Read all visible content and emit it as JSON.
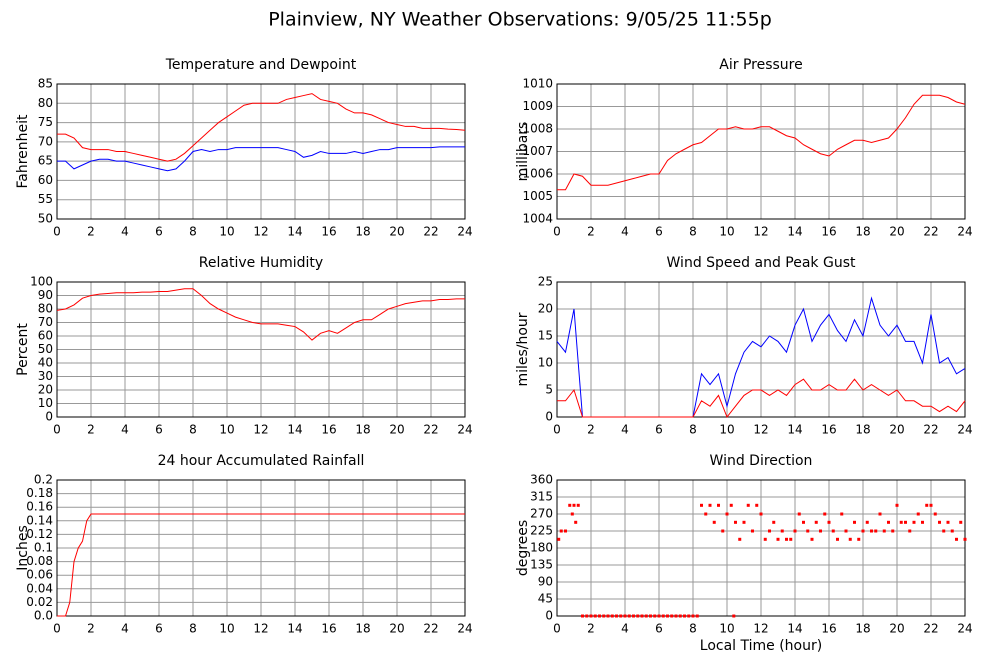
{
  "title": "Plainview, NY Weather Observations: 9/05/25 11:55p",
  "chart_data": [
    {
      "type": "line",
      "title": "Temperature and Dewpoint",
      "ylabel": "Fahrenheit",
      "x": [
        0,
        0.5,
        1,
        1.5,
        2,
        2.5,
        3,
        3.5,
        4,
        4.5,
        5,
        5.5,
        6,
        6.5,
        7,
        7.5,
        8,
        8.5,
        9,
        9.5,
        10,
        10.5,
        11,
        11.5,
        12,
        12.5,
        13,
        13.5,
        14,
        14.5,
        15,
        15.5,
        16,
        16.5,
        17,
        17.5,
        18,
        18.5,
        19,
        19.5,
        20,
        20.5,
        21,
        21.5,
        22,
        22.5,
        23,
        23.5,
        24
      ],
      "series": [
        {
          "color": "#ff0000",
          "values": [
            72,
            72,
            71,
            68.5,
            68,
            68,
            68,
            67.5,
            67.5,
            67,
            66.5,
            66,
            65.5,
            65,
            65.5,
            67,
            69,
            71,
            73,
            75,
            76.5,
            78,
            79.5,
            80,
            80,
            80,
            80,
            81,
            81.5,
            82,
            82.5,
            81,
            80.5,
            80,
            78.5,
            77.5,
            77.5,
            77,
            76,
            75,
            74.5,
            74,
            74,
            73.5,
            73.5,
            73.5,
            73.3,
            73.2,
            73
          ]
        },
        {
          "color": "#0000ff",
          "values": [
            65,
            65,
            63,
            64,
            65,
            65.5,
            65.5,
            65,
            65,
            64.5,
            64,
            63.5,
            63,
            62.5,
            63,
            65,
            67.5,
            68,
            67.5,
            68,
            68,
            68.5,
            68.5,
            68.5,
            68.5,
            68.5,
            68.5,
            68,
            67.5,
            66,
            66.5,
            67.5,
            67,
            67,
            67,
            67.5,
            67,
            67.5,
            68,
            68,
            68.5,
            68.5,
            68.5,
            68.5,
            68.5,
            68.7,
            68.7,
            68.7,
            68.7
          ]
        }
      ],
      "xlim": [
        0,
        24
      ],
      "xticks": [
        0,
        2,
        4,
        6,
        8,
        10,
        12,
        14,
        16,
        18,
        20,
        22,
        24
      ],
      "ylim": [
        50,
        85
      ],
      "yticks": [
        50,
        55,
        60,
        65,
        70,
        75,
        80,
        85
      ],
      "grid": true
    },
    {
      "type": "line",
      "title": "Air Pressure",
      "ylabel": "millibars",
      "x": [
        0,
        0.5,
        1,
        1.5,
        2,
        2.5,
        3,
        3.5,
        4,
        4.5,
        5,
        5.5,
        6,
        6.5,
        7,
        7.5,
        8,
        8.5,
        9,
        9.5,
        10,
        10.5,
        11,
        11.5,
        12,
        12.5,
        13,
        13.5,
        14,
        14.5,
        15,
        15.5,
        16,
        16.5,
        17,
        17.5,
        18,
        18.5,
        19,
        19.5,
        20,
        20.5,
        21,
        21.5,
        22,
        22.5,
        23,
        23.5,
        24
      ],
      "series": [
        {
          "color": "#ff0000",
          "values": [
            1005.3,
            1005.3,
            1006,
            1005.9,
            1005.5,
            1005.5,
            1005.5,
            1005.6,
            1005.7,
            1005.8,
            1005.9,
            1006,
            1006,
            1006.6,
            1006.9,
            1007.1,
            1007.3,
            1007.4,
            1007.7,
            1008,
            1008,
            1008.1,
            1008,
            1008,
            1008.1,
            1008.1,
            1007.9,
            1007.7,
            1007.6,
            1007.3,
            1007.1,
            1006.9,
            1006.8,
            1007.1,
            1007.3,
            1007.5,
            1007.5,
            1007.4,
            1007.5,
            1007.6,
            1008,
            1008.5,
            1009.1,
            1009.5,
            1009.5,
            1009.5,
            1009.4,
            1009.2,
            1009.1
          ]
        }
      ],
      "xlim": [
        0,
        24
      ],
      "xticks": [
        0,
        2,
        4,
        6,
        8,
        10,
        12,
        14,
        16,
        18,
        20,
        22,
        24
      ],
      "ylim": [
        1004,
        1010
      ],
      "yticks": [
        1004,
        1005,
        1006,
        1007,
        1008,
        1009,
        1010
      ],
      "grid": true
    },
    {
      "type": "line",
      "title": "Relative Humidity",
      "ylabel": "Percent",
      "x": [
        0,
        0.5,
        1,
        1.5,
        2,
        2.5,
        3,
        3.5,
        4,
        4.5,
        5,
        5.5,
        6,
        6.5,
        7,
        7.5,
        8,
        8.5,
        9,
        9.5,
        10,
        10.5,
        11,
        11.5,
        12,
        12.5,
        13,
        13.5,
        14,
        14.5,
        15,
        15.5,
        16,
        16.5,
        17,
        17.5,
        18,
        18.5,
        19,
        19.5,
        20,
        20.5,
        21,
        21.5,
        22,
        22.5,
        23,
        23.5,
        24
      ],
      "series": [
        {
          "color": "#ff0000",
          "values": [
            79,
            80,
            83,
            88,
            90,
            91,
            91.5,
            92,
            92,
            92,
            92.5,
            92.5,
            93,
            93,
            94,
            95,
            95,
            90,
            84,
            80,
            77,
            74,
            72,
            70,
            69,
            69,
            69,
            68,
            67,
            63,
            57,
            62,
            64,
            62,
            66,
            70,
            72,
            72,
            76,
            80,
            82,
            84,
            85,
            86,
            86,
            87,
            87,
            87.5,
            87.5
          ]
        }
      ],
      "xlim": [
        0,
        24
      ],
      "xticks": [
        0,
        2,
        4,
        6,
        8,
        10,
        12,
        14,
        16,
        18,
        20,
        22,
        24
      ],
      "ylim": [
        0,
        100
      ],
      "yticks": [
        0,
        10,
        20,
        30,
        40,
        50,
        60,
        70,
        80,
        90,
        100
      ],
      "grid": true
    },
    {
      "type": "line",
      "title": "Wind Speed and Peak Gust",
      "ylabel": "miles/hour",
      "x": [
        0,
        0.5,
        1,
        1.5,
        2,
        2.5,
        3,
        3.5,
        4,
        4.5,
        5,
        5.5,
        6,
        6.5,
        7,
        7.5,
        8,
        8.5,
        9,
        9.5,
        10,
        10.5,
        11,
        11.5,
        12,
        12.5,
        13,
        13.5,
        14,
        14.5,
        15,
        15.5,
        16,
        16.5,
        17,
        17.5,
        18,
        18.5,
        19,
        19.5,
        20,
        20.5,
        21,
        21.5,
        22,
        22.5,
        23,
        23.5,
        24
      ],
      "series": [
        {
          "color": "#0000ff",
          "values": [
            14,
            12,
            20,
            0,
            0,
            0,
            0,
            0,
            0,
            0,
            0,
            0,
            0,
            0,
            0,
            0,
            0,
            8,
            6,
            8,
            2,
            8,
            12,
            14,
            13,
            15,
            14,
            12,
            17,
            20,
            14,
            17,
            19,
            16,
            14,
            18,
            15,
            22,
            17,
            15,
            17,
            14,
            14,
            10,
            19,
            10,
            11,
            8,
            9
          ]
        },
        {
          "color": "#ff0000",
          "values": [
            3,
            3,
            5,
            0,
            0,
            0,
            0,
            0,
            0,
            0,
            0,
            0,
            0,
            0,
            0,
            0,
            0,
            3,
            2,
            4,
            0,
            2,
            4,
            5,
            5,
            4,
            5,
            4,
            6,
            7,
            5,
            5,
            6,
            5,
            5,
            7,
            5,
            6,
            5,
            4,
            5,
            3,
            3,
            2,
            2,
            1,
            2,
            1,
            3
          ]
        }
      ],
      "xlim": [
        0,
        24
      ],
      "xticks": [
        0,
        2,
        4,
        6,
        8,
        10,
        12,
        14,
        16,
        18,
        20,
        22,
        24
      ],
      "ylim": [
        0,
        25
      ],
      "yticks": [
        0,
        5,
        10,
        15,
        20,
        25
      ],
      "grid": true
    },
    {
      "type": "line",
      "title": "24 hour Accumulated Rainfall",
      "ylabel": "Inches",
      "x": [
        0,
        0.5,
        0.75,
        1,
        1.25,
        1.5,
        1.75,
        2,
        24
      ],
      "series": [
        {
          "color": "#ff0000",
          "values": [
            0,
            0,
            0.02,
            0.08,
            0.1,
            0.11,
            0.14,
            0.15,
            0.15
          ]
        }
      ],
      "xlim": [
        0,
        24
      ],
      "xticks": [
        0,
        2,
        4,
        6,
        8,
        10,
        12,
        14,
        16,
        18,
        20,
        22,
        24
      ],
      "ylim": [
        0,
        0.2
      ],
      "yticks": [
        {
          "value": 0,
          "label": "0.0"
        },
        0.02,
        0.04,
        0.06,
        0.08,
        0.1,
        0.12,
        0.14,
        0.16,
        0.18,
        0.2
      ],
      "grid": true
    },
    {
      "type": "scatter",
      "title": "Wind Direction",
      "ylabel": "degrees",
      "xlabel": "Local Time (hour)",
      "color": "#ff0000",
      "x": [
        0.1,
        0.25,
        0.5,
        0.75,
        0.9,
        1,
        1.1,
        1.25,
        1.5,
        1.75,
        2,
        2.25,
        2.5,
        2.75,
        3,
        3.25,
        3.5,
        3.75,
        4,
        4.25,
        4.5,
        4.75,
        5,
        5.25,
        5.5,
        5.75,
        6,
        6.25,
        6.5,
        6.75,
        7,
        7.25,
        7.5,
        7.75,
        8,
        8.25,
        8.5,
        8.75,
        9,
        9.25,
        9.5,
        9.75,
        10,
        10.25,
        10.5,
        10.75,
        11,
        11.25,
        11.5,
        11.75,
        12,
        12.25,
        12.5,
        12.75,
        13,
        13.25,
        13.5,
        13.75,
        14,
        14.25,
        14.5,
        14.75,
        15,
        15.25,
        15.5,
        15.75,
        16,
        16.25,
        16.5,
        16.75,
        17,
        17.25,
        17.5,
        17.75,
        18,
        18.25,
        18.5,
        18.75,
        19,
        19.25,
        19.5,
        19.75,
        20,
        20.25,
        20.5,
        20.75,
        21,
        21.25,
        21.5,
        21.75,
        22,
        22.25,
        22.5,
        22.75,
        23,
        23.25,
        23.5,
        23.75,
        24,
        10.4
      ],
      "values": [
        203,
        225,
        225,
        293,
        270,
        293,
        248,
        293,
        0,
        0,
        0,
        0,
        0,
        0,
        0,
        0,
        0,
        0,
        0,
        0,
        0,
        0,
        0,
        0,
        0,
        0,
        0,
        0,
        0,
        0,
        0,
        0,
        0,
        0,
        0,
        0,
        293,
        270,
        293,
        248,
        293,
        225,
        270,
        293,
        248,
        203,
        248,
        293,
        225,
        293,
        270,
        203,
        225,
        248,
        203,
        225,
        203,
        203,
        225,
        270,
        248,
        225,
        203,
        248,
        225,
        270,
        248,
        225,
        203,
        270,
        225,
        203,
        248,
        203,
        225,
        248,
        225,
        225,
        270,
        225,
        248,
        225,
        293,
        248,
        248,
        225,
        248,
        270,
        248,
        293,
        293,
        270,
        248,
        225,
        248,
        225,
        203,
        248,
        203,
        0
      ],
      "xlim": [
        0,
        24
      ],
      "xticks": [
        0,
        2,
        4,
        6,
        8,
        10,
        12,
        14,
        16,
        18,
        20,
        22,
        24
      ],
      "ylim": [
        0,
        360
      ],
      "yticks": [
        0,
        45,
        90,
        135,
        180,
        225,
        270,
        315,
        360
      ],
      "grid": true
    }
  ]
}
